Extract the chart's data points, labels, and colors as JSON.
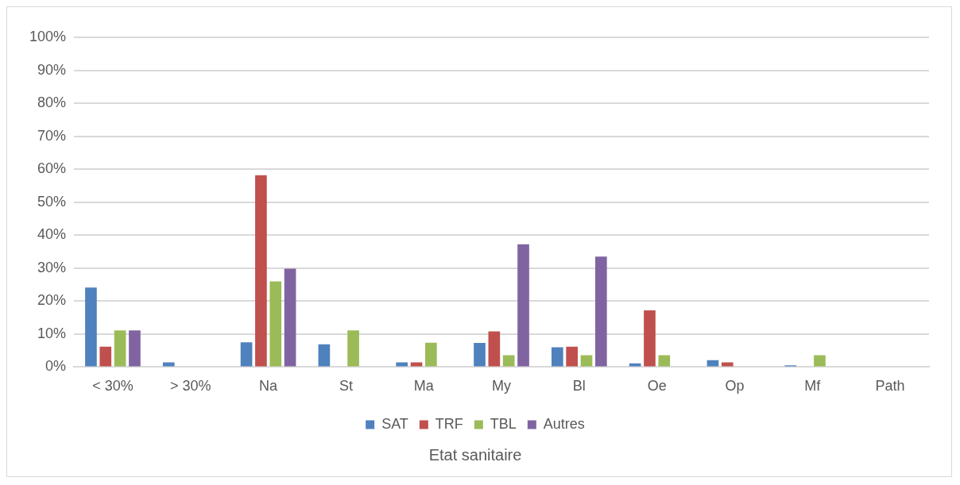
{
  "chart_data": {
    "type": "bar",
    "xlabel": "Etat sanitaire",
    "categories": [
      "< 30%",
      "> 30%",
      "Na",
      "St",
      "Ma",
      "My",
      "Bl",
      "Oe",
      "Op",
      "Mf",
      "Path"
    ],
    "series": [
      {
        "name": "SAT",
        "color": "#4f81bd",
        "values": [
          24.1,
          1.4,
          7.5,
          6.9,
          1.4,
          7.3,
          6.0,
          1.1,
          2.1,
          0.5,
          0
        ]
      },
      {
        "name": "TRF",
        "color": "#c0504d",
        "values": [
          6.2,
          0,
          58.2,
          0,
          1.4,
          10.8,
          6.2,
          17.2,
          1.4,
          0,
          0
        ]
      },
      {
        "name": "TBL",
        "color": "#9bbb59",
        "values": [
          11.1,
          0,
          26.0,
          11.1,
          7.4,
          3.6,
          3.6,
          3.6,
          0,
          3.6,
          0
        ]
      },
      {
        "name": "Autres",
        "color": "#8064a2",
        "values": [
          11.1,
          0,
          29.8,
          0,
          0,
          37.2,
          33.5,
          0,
          0,
          0,
          0
        ]
      }
    ],
    "ylim": [
      0,
      100
    ],
    "yticks": [
      {
        "value": 0,
        "label": "0%"
      },
      {
        "value": 10,
        "label": "10%"
      },
      {
        "value": 20,
        "label": "20%"
      },
      {
        "value": 30,
        "label": "30%"
      },
      {
        "value": 40,
        "label": "40%"
      },
      {
        "value": 50,
        "label": "50%"
      },
      {
        "value": 60,
        "label": "60%"
      },
      {
        "value": 70,
        "label": "70%"
      },
      {
        "value": 80,
        "label": "80%"
      },
      {
        "value": 90,
        "label": "90%"
      },
      {
        "value": 100,
        "label": "100%"
      }
    ],
    "grid": "y",
    "legend": "bottom"
  }
}
